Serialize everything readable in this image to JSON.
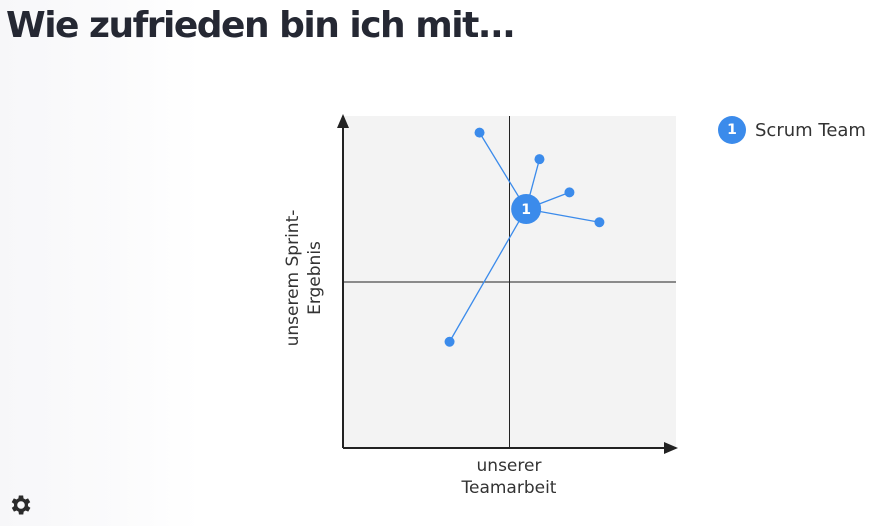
{
  "header": {
    "title": "Wie zufrieden bin ich mit..."
  },
  "chart_data": {
    "type": "scatter",
    "xlabel": "unserer Teamarbeit",
    "ylabel": "unserem Sprint-Ergebnis",
    "xlim": [
      0,
      10
    ],
    "ylim": [
      0,
      10
    ],
    "grid": false,
    "quadrant_lines": {
      "x": 5,
      "y": 5
    },
    "legend": {
      "position": "right",
      "entries": [
        {
          "badge": "1",
          "name": "Scrum Team"
        }
      ]
    },
    "series": [
      {
        "name": "Scrum Team",
        "badge": "1",
        "color": "#3b8beb",
        "mean": {
          "x": 5.5,
          "y": 7.2
        },
        "points": [
          {
            "x": 4.1,
            "y": 9.5
          },
          {
            "x": 5.9,
            "y": 8.7
          },
          {
            "x": 6.8,
            "y": 7.7
          },
          {
            "x": 7.7,
            "y": 6.8
          },
          {
            "x": 3.2,
            "y": 3.2
          }
        ]
      }
    ]
  },
  "legend_ui": {
    "badge": "1",
    "label": "Scrum Team"
  },
  "labels": {
    "x_line1": "unserer",
    "x_line2": "Teamarbeit",
    "y_line1": "unserem Sprint-",
    "y_line2": "Ergebnis"
  },
  "icons": {
    "settings": "gear-icon"
  },
  "colors": {
    "accent": "#3b8beb",
    "plot_bg": "#f3f3f3",
    "axis": "#222222"
  }
}
